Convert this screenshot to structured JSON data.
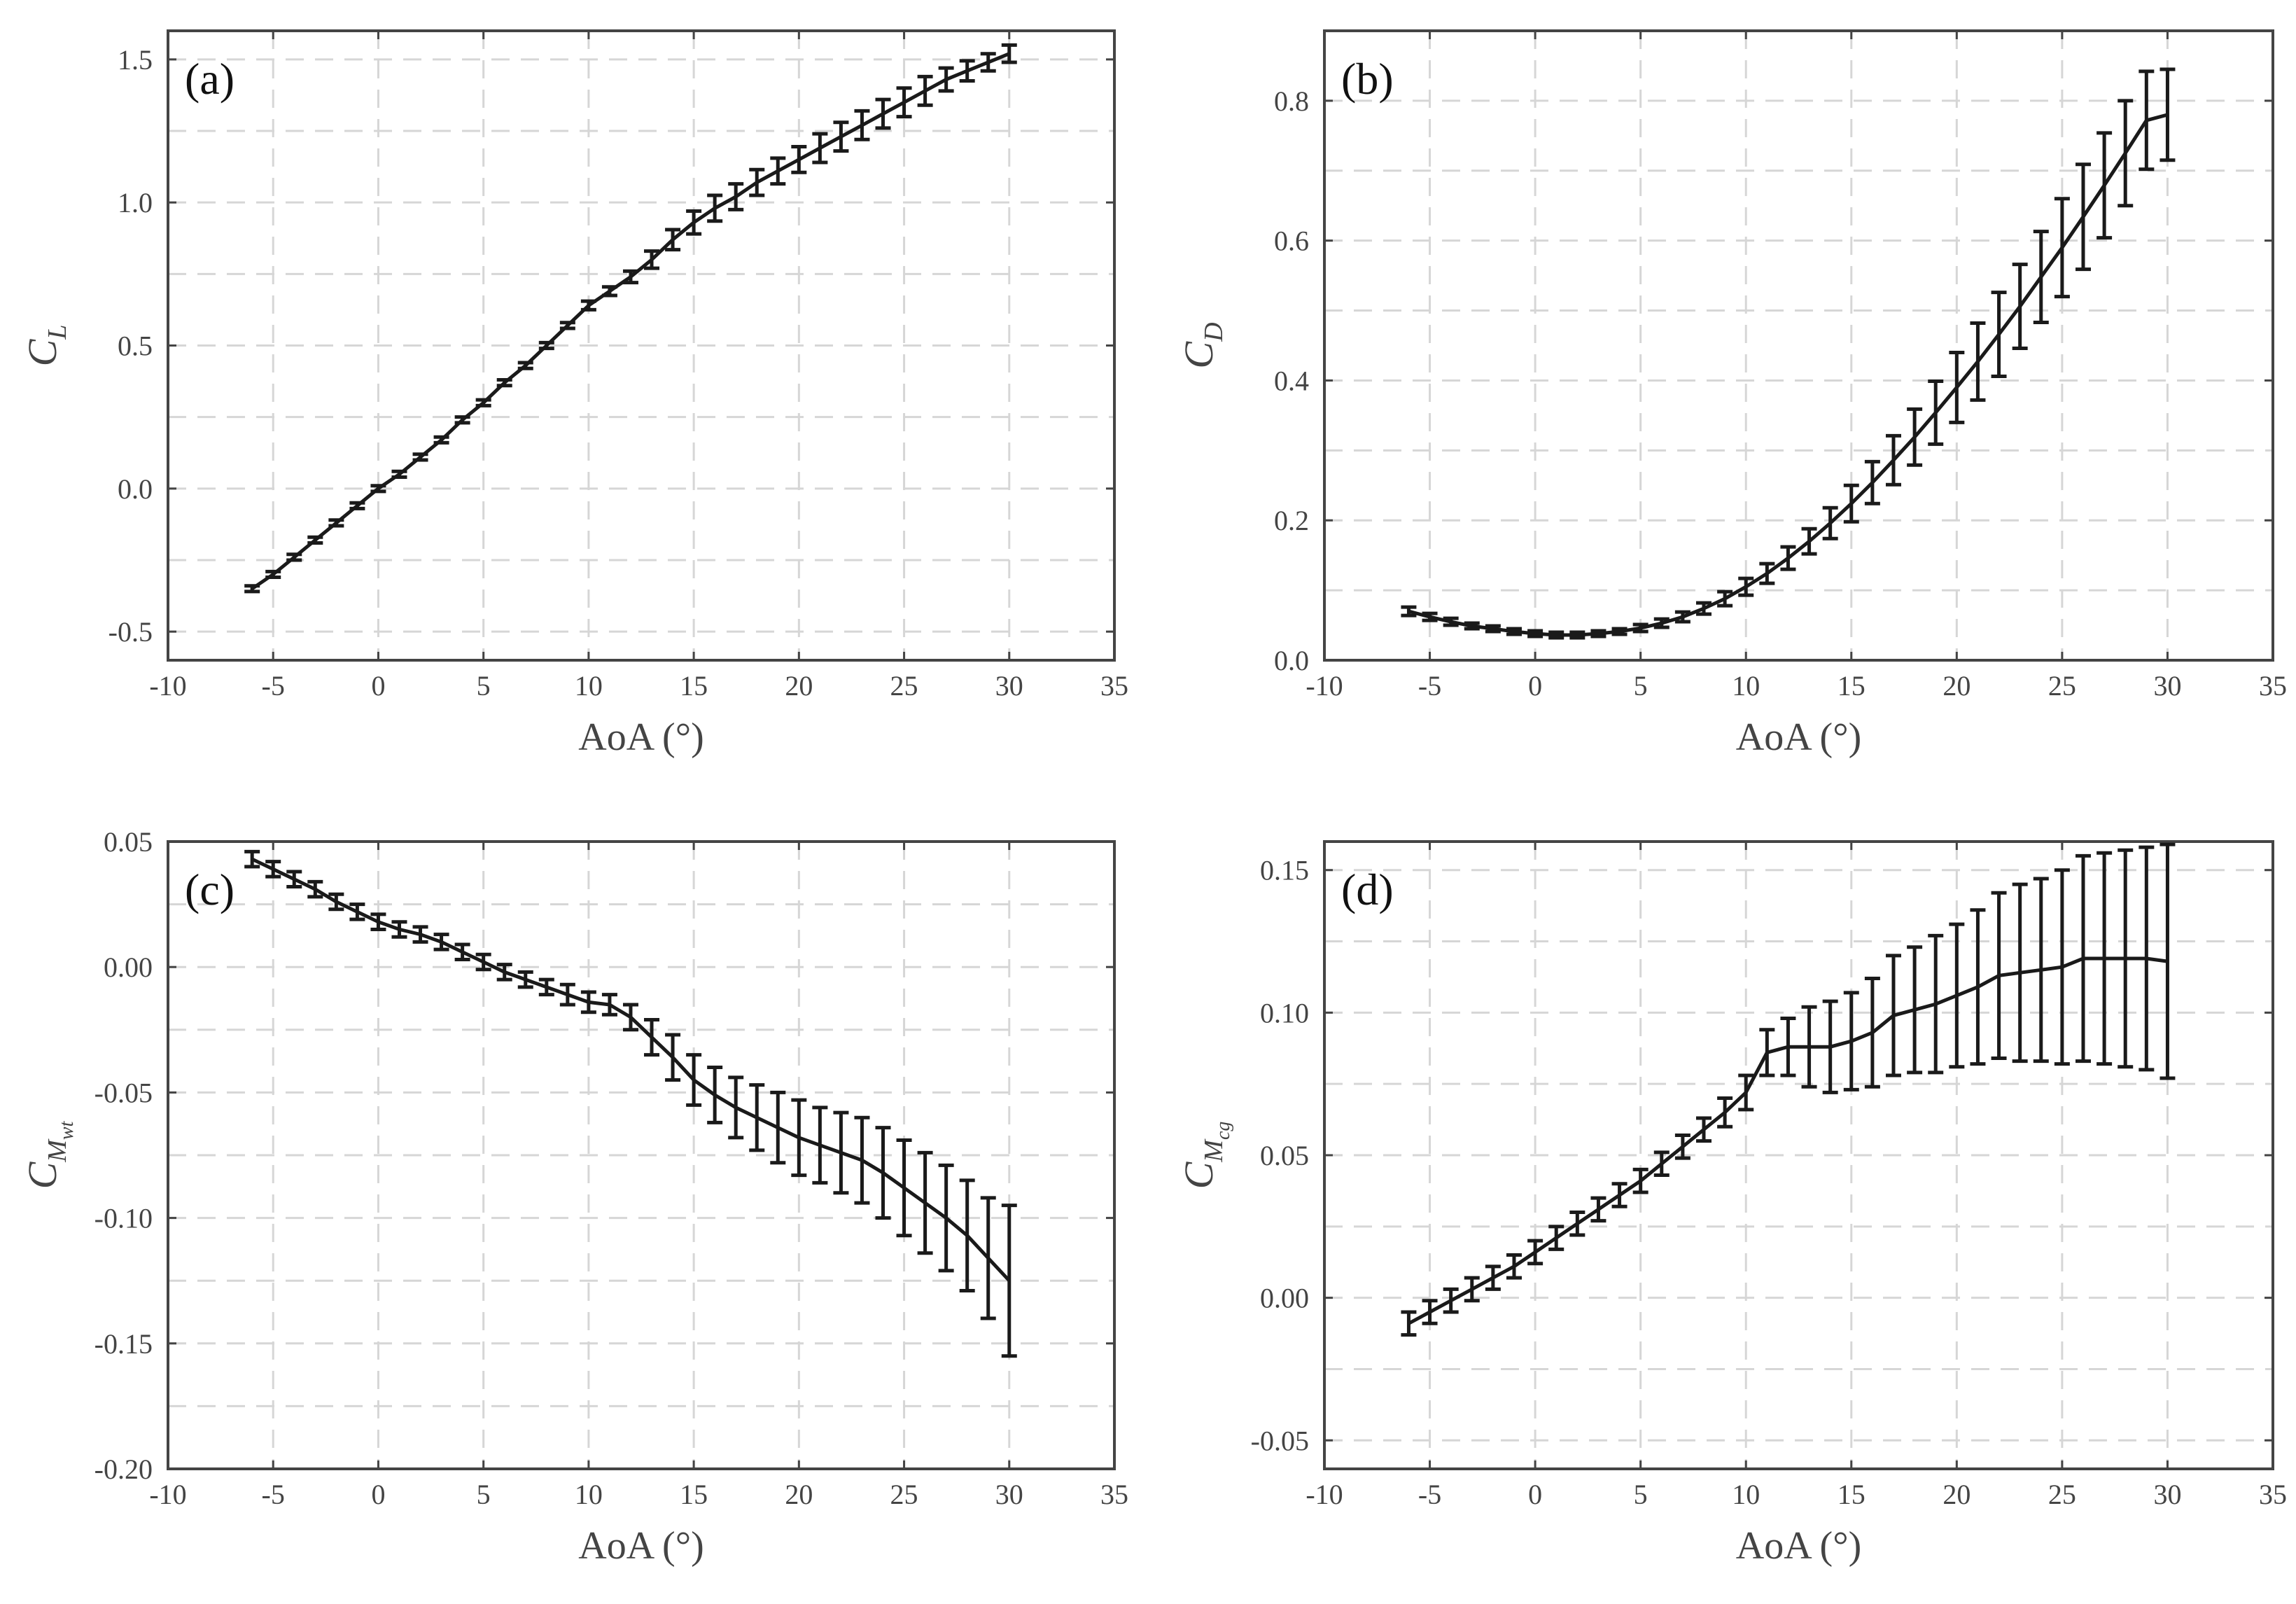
{
  "chart_data": [
    {
      "type": "line",
      "panel": "(a)",
      "ylabel": "C",
      "ylabel_sub": "L",
      "xlabel": "AoA (°)",
      "xlim": [
        -10,
        35
      ],
      "ylim": [
        -0.6,
        1.6
      ],
      "xticks": [
        -10,
        -5,
        0,
        5,
        10,
        15,
        20,
        25,
        30,
        35
      ],
      "xtick_labels": [
        "-10",
        "-5",
        "0",
        "5",
        "10",
        "15",
        "20",
        "25",
        "30",
        "35"
      ],
      "yticks": [
        -0.5,
        0,
        0.5,
        1.0,
        1.5
      ],
      "ytick_labels": [
        "-0.5",
        "0.0",
        "0.5",
        "1.0",
        "1.5"
      ],
      "ygrid": [
        -0.5,
        -0.25,
        0,
        0.25,
        0.5,
        0.75,
        1.0,
        1.25,
        1.5
      ],
      "x": [
        -6,
        -5,
        -4,
        -3,
        -2,
        -1,
        0,
        1,
        2,
        3,
        4,
        5,
        6,
        7,
        8,
        9,
        10,
        11,
        12,
        13,
        14,
        15,
        16,
        17,
        18,
        19,
        20,
        21,
        22,
        23,
        24,
        25,
        26,
        27,
        28,
        29,
        30
      ],
      "y": [
        -0.35,
        -0.3,
        -0.24,
        -0.18,
        -0.12,
        -0.06,
        0.0,
        0.05,
        0.11,
        0.17,
        0.24,
        0.3,
        0.37,
        0.43,
        0.5,
        0.57,
        0.64,
        0.69,
        0.74,
        0.8,
        0.87,
        0.93,
        0.98,
        1.02,
        1.07,
        1.11,
        1.15,
        1.19,
        1.23,
        1.27,
        1.31,
        1.35,
        1.39,
        1.43,
        1.46,
        1.49,
        1.52
      ],
      "err": [
        0.01,
        0.01,
        0.01,
        0.01,
        0.01,
        0.01,
        0.01,
        0.01,
        0.01,
        0.01,
        0.01,
        0.01,
        0.01,
        0.01,
        0.01,
        0.01,
        0.015,
        0.015,
        0.02,
        0.03,
        0.035,
        0.04,
        0.045,
        0.045,
        0.045,
        0.045,
        0.045,
        0.05,
        0.05,
        0.05,
        0.05,
        0.05,
        0.05,
        0.04,
        0.035,
        0.03,
        0.03
      ]
    },
    {
      "type": "line",
      "panel": "(b)",
      "ylabel": "C",
      "ylabel_sub": "D",
      "xlabel": "AoA (°)",
      "xlim": [
        -10,
        35
      ],
      "ylim": [
        0,
        0.9
      ],
      "xticks": [
        -10,
        -5,
        0,
        5,
        10,
        15,
        20,
        25,
        30,
        35
      ],
      "xtick_labels": [
        "-10",
        "-5",
        "0",
        "5",
        "10",
        "15",
        "20",
        "25",
        "30",
        "35"
      ],
      "yticks": [
        0,
        0.2,
        0.4,
        0.6,
        0.8
      ],
      "ytick_labels": [
        "0.0",
        "0.2",
        "0.4",
        "0.6",
        "0.8"
      ],
      "ygrid": [
        0.1,
        0.2,
        0.3,
        0.4,
        0.5,
        0.6,
        0.7,
        0.8
      ],
      "x": [
        -6,
        -5,
        -4,
        -3,
        -2,
        -1,
        0,
        1,
        2,
        3,
        4,
        5,
        6,
        7,
        8,
        9,
        10,
        11,
        12,
        13,
        14,
        15,
        16,
        17,
        18,
        19,
        20,
        21,
        22,
        23,
        24,
        25,
        26,
        27,
        28,
        29,
        30
      ],
      "y": [
        0.07,
        0.062,
        0.055,
        0.049,
        0.045,
        0.041,
        0.038,
        0.036,
        0.036,
        0.038,
        0.041,
        0.046,
        0.053,
        0.062,
        0.074,
        0.088,
        0.105,
        0.124,
        0.146,
        0.17,
        0.196,
        0.224,
        0.254,
        0.286,
        0.319,
        0.354,
        0.39,
        0.427,
        0.466,
        0.506,
        0.548,
        0.59,
        0.634,
        0.679,
        0.725,
        0.772,
        0.78
      ],
      "err": [
        0.006,
        0.005,
        0.005,
        0.004,
        0.004,
        0.004,
        0.004,
        0.004,
        0.004,
        0.004,
        0.004,
        0.005,
        0.006,
        0.007,
        0.008,
        0.01,
        0.012,
        0.014,
        0.016,
        0.018,
        0.022,
        0.026,
        0.03,
        0.035,
        0.04,
        0.045,
        0.05,
        0.055,
        0.06,
        0.06,
        0.065,
        0.07,
        0.075,
        0.075,
        0.075,
        0.07,
        0.065
      ]
    },
    {
      "type": "line",
      "panel": "(c)",
      "ylabel": "C",
      "ylabel_sub": "M",
      "ylabel_subsub": "wt",
      "xlabel": "AoA (°)",
      "xlim": [
        -10,
        35
      ],
      "ylim": [
        -0.2,
        0.05
      ],
      "xticks": [
        -10,
        -5,
        0,
        5,
        10,
        15,
        20,
        25,
        30,
        35
      ],
      "xtick_labels": [
        "-10",
        "-5",
        "0",
        "5",
        "10",
        "15",
        "20",
        "25",
        "30",
        "35"
      ],
      "yticks": [
        -0.2,
        -0.15,
        -0.1,
        -0.05,
        0,
        0.05
      ],
      "ytick_labels": [
        "-0.20",
        "-0.15",
        "-0.10",
        "-0.05",
        "0.00",
        "0.05"
      ],
      "ygrid": [
        -0.175,
        -0.15,
        -0.125,
        -0.1,
        -0.075,
        -0.05,
        -0.025,
        0,
        0.025
      ],
      "x": [
        -6,
        -5,
        -4,
        -3,
        -2,
        -1,
        0,
        1,
        2,
        3,
        4,
        5,
        6,
        7,
        8,
        9,
        10,
        11,
        12,
        13,
        14,
        15,
        16,
        17,
        18,
        19,
        20,
        21,
        22,
        23,
        24,
        25,
        26,
        27,
        28,
        29,
        30
      ],
      "y": [
        0.043,
        0.039,
        0.035,
        0.031,
        0.026,
        0.022,
        0.018,
        0.015,
        0.013,
        0.01,
        0.006,
        0.002,
        -0.002,
        -0.005,
        -0.008,
        -0.011,
        -0.014,
        -0.015,
        -0.02,
        -0.028,
        -0.036,
        -0.045,
        -0.051,
        -0.056,
        -0.06,
        -0.064,
        -0.068,
        -0.071,
        -0.074,
        -0.077,
        -0.082,
        -0.088,
        -0.094,
        -0.1,
        -0.107,
        -0.116,
        -0.125
      ],
      "err": [
        0.003,
        0.003,
        0.003,
        0.003,
        0.003,
        0.003,
        0.003,
        0.003,
        0.003,
        0.003,
        0.003,
        0.003,
        0.003,
        0.003,
        0.003,
        0.004,
        0.004,
        0.004,
        0.005,
        0.007,
        0.009,
        0.01,
        0.011,
        0.012,
        0.013,
        0.014,
        0.015,
        0.015,
        0.016,
        0.017,
        0.018,
        0.019,
        0.02,
        0.021,
        0.022,
        0.024,
        0.03
      ]
    },
    {
      "type": "line",
      "panel": "(d)",
      "ylabel": "C",
      "ylabel_sub": "M",
      "ylabel_subsub": "cg",
      "xlabel": "AoA (°)",
      "xlim": [
        -10,
        35
      ],
      "ylim": [
        -0.06,
        0.16
      ],
      "xticks": [
        -10,
        -5,
        0,
        5,
        10,
        15,
        20,
        25,
        30,
        35
      ],
      "xtick_labels": [
        "-10",
        "-5",
        "0",
        "5",
        "10",
        "15",
        "20",
        "25",
        "30",
        "35"
      ],
      "yticks": [
        -0.05,
        0,
        0.05,
        0.1,
        0.15
      ],
      "ytick_labels": [
        "-0.05",
        "0.00",
        "0.05",
        "0.10",
        "0.15"
      ],
      "ygrid": [
        -0.05,
        -0.025,
        0,
        0.025,
        0.05,
        0.075,
        0.1,
        0.125,
        0.15
      ],
      "x": [
        -6,
        -5,
        -4,
        -3,
        -2,
        -1,
        0,
        1,
        2,
        3,
        4,
        5,
        6,
        7,
        8,
        9,
        10,
        11,
        12,
        13,
        14,
        15,
        16,
        17,
        18,
        19,
        20,
        21,
        22,
        23,
        24,
        25,
        26,
        27,
        28,
        29,
        30
      ],
      "y": [
        -0.009,
        -0.005,
        -0.001,
        0.003,
        0.007,
        0.011,
        0.016,
        0.021,
        0.026,
        0.031,
        0.036,
        0.041,
        0.047,
        0.053,
        0.059,
        0.065,
        0.072,
        0.086,
        0.088,
        0.088,
        0.088,
        0.09,
        0.093,
        0.099,
        0.101,
        0.103,
        0.106,
        0.109,
        0.113,
        0.114,
        0.115,
        0.116,
        0.119,
        0.119,
        0.119,
        0.119,
        0.118
      ],
      "err": [
        0.004,
        0.004,
        0.004,
        0.004,
        0.004,
        0.004,
        0.004,
        0.004,
        0.004,
        0.004,
        0.004,
        0.004,
        0.004,
        0.004,
        0.004,
        0.005,
        0.006,
        0.008,
        0.01,
        0.014,
        0.016,
        0.017,
        0.019,
        0.021,
        0.022,
        0.024,
        0.025,
        0.027,
        0.029,
        0.031,
        0.032,
        0.034,
        0.036,
        0.037,
        0.038,
        0.039,
        0.041
      ]
    }
  ]
}
